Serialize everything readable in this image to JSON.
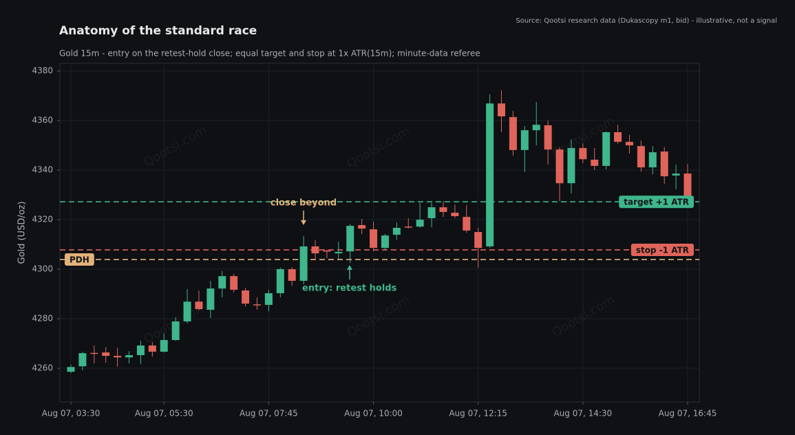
{
  "chart_data": {
    "type": "candlestick",
    "title": "Anatomy of the standard race",
    "subtitle": "Gold 15m - entry on the retest-hold close; equal target and stop at 1x ATR(15m); minute-data referee",
    "source": "Source: Qootsi research data (Dukascopy m1, bid) - illustrative, not a signal",
    "watermark": "Qootsi.com",
    "y_label": "Gold (USD/oz)",
    "ylim": [
      4246.4,
      4383.1
    ],
    "yticks": [
      4260,
      4280,
      4300,
      4320,
      4340,
      4360,
      4380
    ],
    "grid": true,
    "up_color": "#3fb68b",
    "down_color": "#e0645a",
    "x": [
      "Aug 07, 03:30",
      "Aug 07, 03:45",
      "Aug 07, 04:00",
      "Aug 07, 04:15",
      "Aug 07, 04:30",
      "Aug 07, 04:45",
      "Aug 07, 05:00",
      "Aug 07, 05:15",
      "Aug 07, 05:30",
      "Aug 07, 05:45",
      "Aug 07, 06:00",
      "Aug 07, 06:15",
      "Aug 07, 06:30",
      "Aug 07, 06:45",
      "Aug 07, 07:00",
      "Aug 07, 07:15",
      "Aug 07, 07:30",
      "Aug 07, 07:45",
      "Aug 07, 08:00",
      "Aug 07, 08:15",
      "Aug 07, 08:30",
      "Aug 07, 08:45",
      "Aug 07, 09:00",
      "Aug 07, 09:15",
      "Aug 07, 09:30",
      "Aug 07, 09:45",
      "Aug 07, 10:00",
      "Aug 07, 10:15",
      "Aug 07, 10:30",
      "Aug 07, 10:45",
      "Aug 07, 11:00",
      "Aug 07, 11:15",
      "Aug 07, 11:30",
      "Aug 07, 11:45",
      "Aug 07, 12:00",
      "Aug 07, 12:15",
      "Aug 07, 12:30",
      "Aug 07, 12:45",
      "Aug 07, 13:00",
      "Aug 07, 13:15",
      "Aug 07, 13:30",
      "Aug 07, 13:45",
      "Aug 07, 14:00",
      "Aug 07, 14:15",
      "Aug 07, 14:30",
      "Aug 07, 14:45",
      "Aug 07, 15:00",
      "Aug 07, 15:15",
      "Aug 07, 15:30",
      "Aug 07, 15:45",
      "Aug 07, 16:00",
      "Aug 07, 16:15",
      "Aug 07, 16:30",
      "Aug 07, 16:45"
    ],
    "xticks": [
      "Aug 07, 03:30",
      "Aug 07, 05:30",
      "Aug 07, 07:45",
      "Aug 07, 10:00",
      "Aug 07, 12:15",
      "Aug 07, 14:30",
      "Aug 07, 16:45"
    ],
    "open": [
      4258.6,
      4260.8,
      4266.2,
      4266.4,
      4265,
      4264.4,
      4265.3,
      4269.2,
      4266.7,
      4271.4,
      4278.9,
      4286.9,
      4283.6,
      4292.2,
      4297.2,
      4291.4,
      4285.8,
      4285.6,
      4290.3,
      4300,
      4295.3,
      4309.2,
      4307.5,
      4306.4,
      4307.2,
      4317.8,
      4316.1,
      4308.6,
      4313.9,
      4317.2,
      4317.2,
      4320.6,
      4325,
      4322.8,
      4321.1,
      4315,
      4309.2,
      4366.9,
      4361.4,
      4348.1,
      4356.1,
      4358.1,
      4348.3,
      4334.7,
      4348.9,
      4344.2,
      4341.7,
      4355.3,
      4351.4,
      4349.7,
      4341.1,
      4347.5,
      4337.8,
      4338.6
    ],
    "high": [
      4261.4,
      4266.7,
      4269.2,
      4268.6,
      4268.3,
      4266.9,
      4271.1,
      4270.5,
      4274,
      4280.6,
      4292,
      4291.4,
      4295.3,
      4299.2,
      4298.1,
      4292.5,
      4288.6,
      4291.7,
      4300.6,
      4300.8,
      4313.3,
      4311.7,
      4308,
      4311.1,
      4318.3,
      4320.3,
      4319.2,
      4314.2,
      4318.9,
      4320.6,
      4326.7,
      4326.7,
      4327.5,
      4326.1,
      4325.8,
      4316.7,
      4370.6,
      4372.2,
      4363.9,
      4357.8,
      4367.5,
      4360,
      4349.2,
      4352.5,
      4350.8,
      4348.9,
      4355.6,
      4358.3,
      4354.2,
      4351.9,
      4349.7,
      4349.4,
      4342.2,
      4342.5
    ],
    "low": [
      4258.1,
      4259.2,
      4262,
      4262.2,
      4260.6,
      4262,
      4261.7,
      4264.7,
      4266.4,
      4271.1,
      4278.1,
      4283.3,
      4280.3,
      4288.6,
      4290.6,
      4285,
      4283.6,
      4283,
      4288.6,
      4293.3,
      4293.9,
      4303.9,
      4304.4,
      4304.2,
      4302.5,
      4314.2,
      4307.2,
      4307.8,
      4311.9,
      4316.4,
      4316.7,
      4316.9,
      4321.1,
      4320.6,
      4314.7,
      4300.6,
      4308.6,
      4355.3,
      4345.8,
      4339.2,
      4350,
      4342.2,
      4327.5,
      4330.6,
      4342.8,
      4340,
      4340.3,
      4350.6,
      4346.7,
      4339.4,
      4338.3,
      4334.4,
      4332.2,
      4327.2
    ],
    "close": [
      4260.5,
      4266.1,
      4266,
      4265,
      4264.4,
      4265.3,
      4269.2,
      4266.7,
      4271.4,
      4278.9,
      4286.9,
      4283.9,
      4292.2,
      4297.2,
      4291.7,
      4286.1,
      4285.6,
      4290.3,
      4300,
      4295.3,
      4309.2,
      4306.4,
      4307.2,
      4307,
      4317.5,
      4316.4,
      4308.6,
      4313.6,
      4316.7,
      4316.9,
      4320,
      4325,
      4323.1,
      4321.4,
      4315.6,
      4308.6,
      4366.9,
      4361.7,
      4348.1,
      4356.1,
      4358.3,
      4348.3,
      4334.7,
      4348.9,
      4344.4,
      4341.7,
      4355.3,
      4351.4,
      4350,
      4341.1,
      4347.2,
      4337.5,
      4338.6,
      4328.1
    ],
    "levels": [
      {
        "label": "target +1 ATR",
        "value": 4327.2,
        "color": "#3fb68b"
      },
      {
        "label": "stop -1 ATR",
        "value": 4307.8,
        "color": "#e0645a"
      },
      {
        "label": "PDH",
        "value": 4303.9,
        "color": "#e3b27a"
      }
    ],
    "annotations": [
      {
        "text": "close beyond",
        "color": "#e3b27a"
      },
      {
        "text": "entry: retest holds",
        "color": "#3fb68b"
      }
    ]
  }
}
